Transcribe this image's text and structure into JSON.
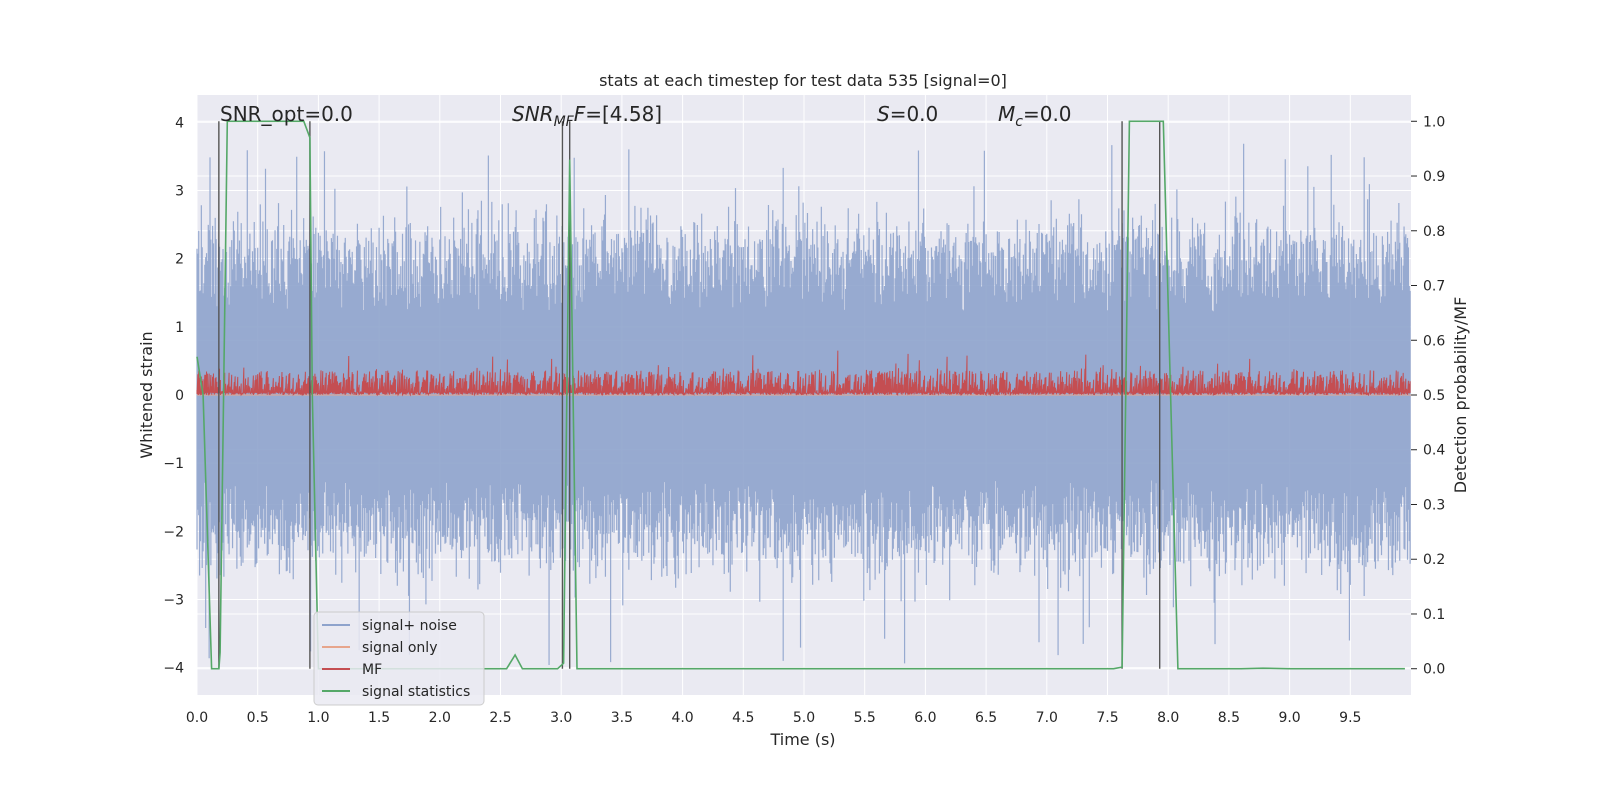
{
  "chart_data": {
    "type": "line",
    "title": "stats at each timestep for test data 535 [signal=0]",
    "xlabel": "Time (s)",
    "ylabel": "Whitened strain",
    "y2label": "Detection probability/MF",
    "xlim": [
      0,
      10
    ],
    "ylim": [
      -4.4,
      4.4
    ],
    "y2lim": [
      -0.048,
      1.048
    ],
    "x_ticks": [
      0.0,
      0.5,
      1.0,
      1.5,
      2.0,
      2.5,
      3.0,
      3.5,
      4.0,
      4.5,
      5.0,
      5.5,
      6.0,
      6.5,
      7.0,
      7.5,
      8.0,
      8.5,
      9.0,
      9.5
    ],
    "x_tick_labels": [
      "0.0",
      "0.5",
      "1.0",
      "1.5",
      "2.0",
      "2.5",
      "3.0",
      "3.5",
      "4.0",
      "4.5",
      "5.0",
      "5.5",
      "6.0",
      "6.5",
      "7.0",
      "7.5",
      "8.0",
      "8.5",
      "9.0",
      "9.5"
    ],
    "y_ticks": [
      4,
      3,
      2,
      1,
      0,
      -1,
      -2,
      -3,
      -4
    ],
    "y_tick_labels": [
      "4",
      "3",
      "2",
      "1",
      "0",
      "−1",
      "−2",
      "−3",
      "−4"
    ],
    "y2_ticks": [
      1.0,
      0.9,
      0.8,
      0.7,
      0.6,
      0.5,
      0.4,
      0.3,
      0.2,
      0.1,
      0.0
    ],
    "y2_tick_labels": [
      "1.0",
      "0.9",
      "0.8",
      "0.7",
      "0.6",
      "0.5",
      "0.4",
      "0.3",
      "0.2",
      "0.1",
      "0.0"
    ],
    "grid": true,
    "legend_position": "lower-left",
    "annotations": {
      "snr_opt": "SNR_opt=0.0",
      "snr_mf_prefix": "SNR",
      "snr_mf_sub": "MF",
      "snr_mf_suffix": "=[4.58]",
      "s_var": "S",
      "s_suffix": "=0.0",
      "mc_var": "M",
      "mc_sub": "c",
      "mc_suffix": "=0.0"
    },
    "vertical_markers": [
      0.18,
      0.93,
      3.01,
      3.07,
      7.62,
      7.93
    ],
    "series": [
      {
        "name": "signal+ noise",
        "color": "#8ea3cc",
        "axis": "left",
        "kind": "noise",
        "envelope_low_p5": -2.2,
        "envelope_high_p95": 2.2,
        "extremes": {
          "max": 3.7,
          "min": -4.0
        }
      },
      {
        "name": "signal only",
        "color": "#e7a58c",
        "axis": "left",
        "kind": "flat",
        "value": 0.0
      },
      {
        "name": "MF",
        "color": "#c44e52",
        "axis": "right",
        "kind": "noise",
        "envelope_low": 0.5,
        "envelope_high": 0.55,
        "extremes": {
          "max": 0.59
        }
      },
      {
        "name": "signal statistics",
        "color": "#55a868",
        "axis": "right",
        "x": [
          0.0,
          0.05,
          0.12,
          0.18,
          0.19,
          0.25,
          0.88,
          0.93,
          0.95,
          1.0,
          1.1,
          2.5,
          2.55,
          2.62,
          2.68,
          2.75,
          2.9,
          2.97,
          3.02,
          3.07,
          3.13,
          7.4,
          7.55,
          7.62,
          7.68,
          7.96,
          8.08,
          8.4,
          8.6,
          8.78,
          9.0,
          9.95
        ],
        "y": [
          0.57,
          0.5,
          0.0,
          0.0,
          0.03,
          1.0,
          1.0,
          0.97,
          0.5,
          0.0,
          0.0,
          0.0,
          0.0,
          0.025,
          0.0,
          0.0,
          0.0,
          0.0,
          0.01,
          0.93,
          0.0,
          0.0,
          0.0,
          0.003,
          1.0,
          1.0,
          0.0,
          0.0,
          0.0,
          0.001,
          0.0,
          0.0
        ]
      }
    ]
  }
}
